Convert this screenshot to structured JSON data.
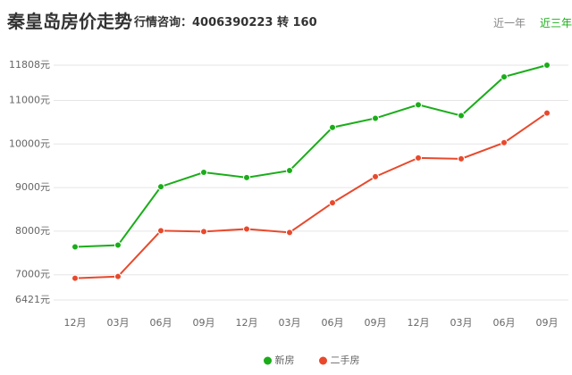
{
  "tabs": [
    "近一年",
    "近三年"
  ],
  "chart_data": {
    "type": "line",
    "title": "秦皇岛房价走势",
    "subtitle": "行情咨询：4006390223 转 160",
    "categories": [
      "12月",
      "03月",
      "06月",
      "09月",
      "12月",
      "03月",
      "06月",
      "09月",
      "12月",
      "03月",
      "06月",
      "09月"
    ],
    "series": [
      {
        "name": "新房",
        "color": "#1aad19",
        "values": [
          7640,
          7680,
          9020,
          9350,
          9230,
          9390,
          10380,
          10590,
          10900,
          10650,
          11540,
          11808
        ]
      },
      {
        "name": "二手房",
        "color": "#e8492c",
        "values": [
          6920,
          6960,
          8010,
          7990,
          8050,
          7970,
          8650,
          9250,
          9680,
          9660,
          10030,
          10710
        ]
      }
    ],
    "ylim": [
      6421,
      11808
    ],
    "yticks": [
      {
        "value": 6421,
        "label": "6421元"
      },
      {
        "value": 7000,
        "label": "7000元"
      },
      {
        "value": 8000,
        "label": "8000元"
      },
      {
        "value": 9000,
        "label": "9000元"
      },
      {
        "value": 10000,
        "label": "10000元"
      },
      {
        "value": 11000,
        "label": "11000元"
      },
      {
        "value": 11808,
        "label": "11808元"
      }
    ],
    "grid": true,
    "legend": "bottom"
  }
}
